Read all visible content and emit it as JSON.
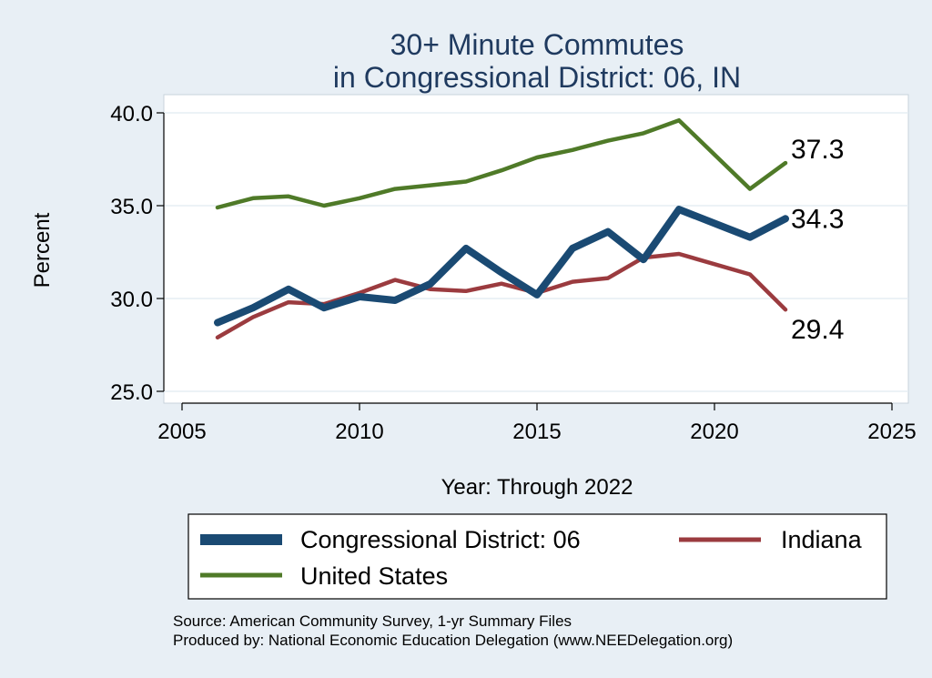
{
  "chart_data": {
    "type": "line",
    "title": [
      "30+ Minute Commutes",
      "in Congressional District:  06, IN"
    ],
    "xlabel": "Year: Through 2022",
    "ylabel": "Percent",
    "xlim": [
      2005,
      2025
    ],
    "ylim": [
      25,
      40
    ],
    "xticks": [
      2005,
      2010,
      2015,
      2020,
      2025
    ],
    "yticks": [
      25,
      30,
      35,
      40
    ],
    "ytick_labels": [
      "25.0",
      "30.0",
      "35.0",
      "40.0"
    ],
    "grid": "horizontal",
    "series": [
      {
        "key": "cd",
        "name": "Congressional District:  06",
        "color": "#1a4a73",
        "x": [
          2006,
          2007,
          2008,
          2009,
          2010,
          2011,
          2012,
          2013,
          2014,
          2015,
          2016,
          2017,
          2018,
          2019,
          2021,
          2022
        ],
        "values": [
          28.7,
          29.5,
          30.5,
          29.5,
          30.1,
          29.9,
          30.8,
          32.7,
          31.4,
          30.2,
          32.7,
          33.6,
          32.1,
          34.8,
          33.3,
          34.3
        ],
        "end_label": "34.3"
      },
      {
        "key": "in",
        "name": "Indiana",
        "color": "#9b3b3f",
        "x": [
          2006,
          2007,
          2008,
          2009,
          2010,
          2011,
          2012,
          2013,
          2014,
          2015,
          2016,
          2017,
          2018,
          2019,
          2021,
          2022
        ],
        "values": [
          27.9,
          29.0,
          29.8,
          29.7,
          30.3,
          31.0,
          30.5,
          30.4,
          30.8,
          30.3,
          30.9,
          31.1,
          32.2,
          32.4,
          31.3,
          29.4
        ],
        "end_label": "29.4"
      },
      {
        "key": "us",
        "name": "United States",
        "color": "#4f7a28",
        "x": [
          2006,
          2007,
          2008,
          2009,
          2010,
          2011,
          2012,
          2013,
          2014,
          2015,
          2016,
          2017,
          2018,
          2019,
          2021,
          2022
        ],
        "values": [
          34.9,
          35.4,
          35.5,
          35.0,
          35.4,
          35.9,
          36.1,
          36.3,
          36.9,
          37.6,
          38.0,
          38.5,
          38.9,
          39.6,
          35.9,
          37.3
        ],
        "end_label": "37.3"
      }
    ],
    "legend": {
      "placement": "bottom",
      "entries": [
        "Congressional District:  06",
        "Indiana",
        "United States"
      ]
    },
    "source_lines": [
      "Source: American Community Survey, 1-yr Summary Files",
      "Produced by: National Economic Education Delegation (www.NEEDelegation.org)"
    ]
  }
}
